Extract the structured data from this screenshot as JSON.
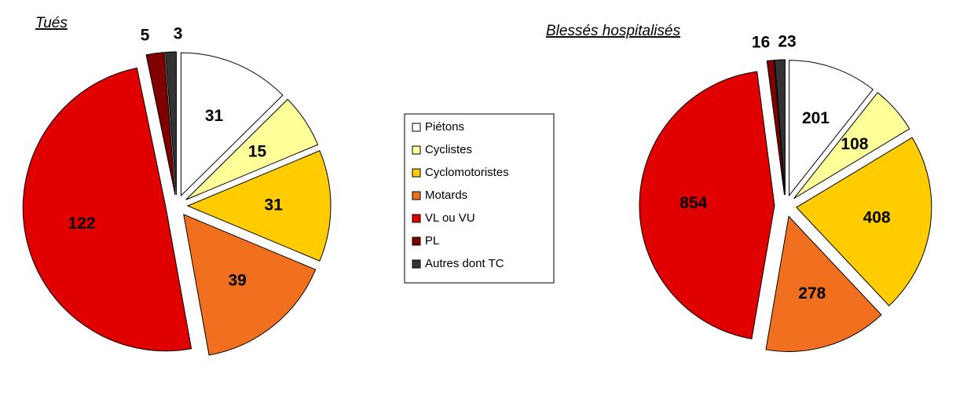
{
  "legend": {
    "labels": [
      "Piétons",
      "Cyclistes",
      "Cyclomotoristes",
      "Motards",
      "VL ou VU",
      "PL",
      "Autres dont TC"
    ],
    "colors": [
      "#ffffff",
      "#ffff99",
      "#ffcc00",
      "#f07020",
      "#e00000",
      "#800000",
      "#333333"
    ]
  },
  "chart_data": [
    {
      "type": "pie",
      "title": "Tués",
      "values": [
        31,
        15,
        31,
        39,
        122,
        5,
        3
      ]
    },
    {
      "type": "pie",
      "title": "Blessés hospitalisés",
      "values": [
        201,
        108,
        408,
        278,
        854,
        16,
        23
      ]
    }
  ]
}
